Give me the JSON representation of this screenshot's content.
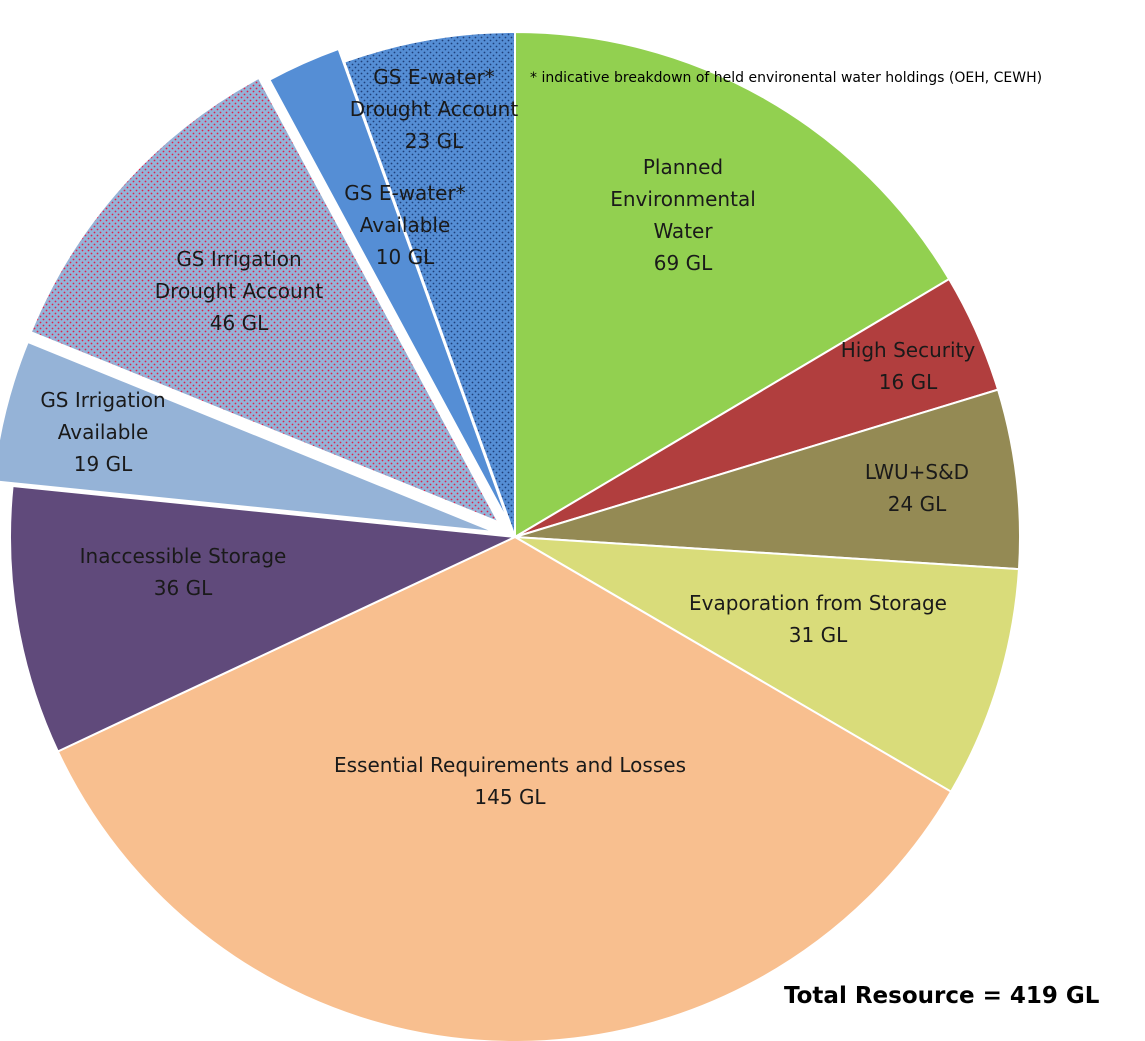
{
  "chart_data": {
    "type": "pie",
    "unit": "GL",
    "start_angle_deg": 0,
    "direction": "clockwise",
    "slices": [
      {
        "name": "Planned Environmental Water",
        "label_lines": [
          "Planned",
          "Environmental",
          "Water",
          "69 GL"
        ],
        "value": 69,
        "color": "#92d050"
      },
      {
        "name": "High Security",
        "label_lines": [
          "High Security",
          "16 GL"
        ],
        "value": 16,
        "color": "#b13e3e"
      },
      {
        "name": "LWU+S&D",
        "label_lines": [
          "LWU+S&D",
          "24 GL"
        ],
        "value": 24,
        "color": "#948a54"
      },
      {
        "name": "Evaporation from Storage",
        "label_lines": [
          "Evaporation from Storage",
          "31 GL"
        ],
        "value": 31,
        "color": "#d9dc7a"
      },
      {
        "name": "Essential Requirements and Losses",
        "label_lines": [
          "Essential Requirements and Losses",
          "145 GL"
        ],
        "value": 145,
        "color": "#f8bf8f"
      },
      {
        "name": "Inaccessible Storage",
        "label_lines": [
          "Inaccessible Storage",
          "36 GL"
        ],
        "value": 36,
        "color": "#604a7b"
      },
      {
        "name": "GS Irrigation Available",
        "label_lines": [
          "GS Irrigation",
          "Available",
          "19 GL"
        ],
        "value": 19,
        "color": "#95b3d7",
        "exploded": true
      },
      {
        "name": "GS Irrigation Drought Account",
        "label_lines": [
          "GS Irrigation",
          "Drought Account",
          "46 GL"
        ],
        "value": 46,
        "color": "#95b3d7",
        "pattern": "red-dots",
        "exploded": true
      },
      {
        "name": "GS E-water* Available",
        "label_lines": [
          "GS E-water*",
          "Available",
          "10 GL"
        ],
        "value": 10,
        "color": "#558ed5",
        "exploded": true
      },
      {
        "name": "GS E-water* Drought Account",
        "label_lines": [
          "GS E-water*",
          "Drought Account",
          "23 GL"
        ],
        "value": 23,
        "color": "#558ed5",
        "pattern": "dark-dots",
        "exploded": true
      }
    ],
    "annotations": {
      "footnote": "* indicative breakdown of held environental water holdings (OEH, CEWH)",
      "total": "Total Resource = 419 GL"
    }
  }
}
